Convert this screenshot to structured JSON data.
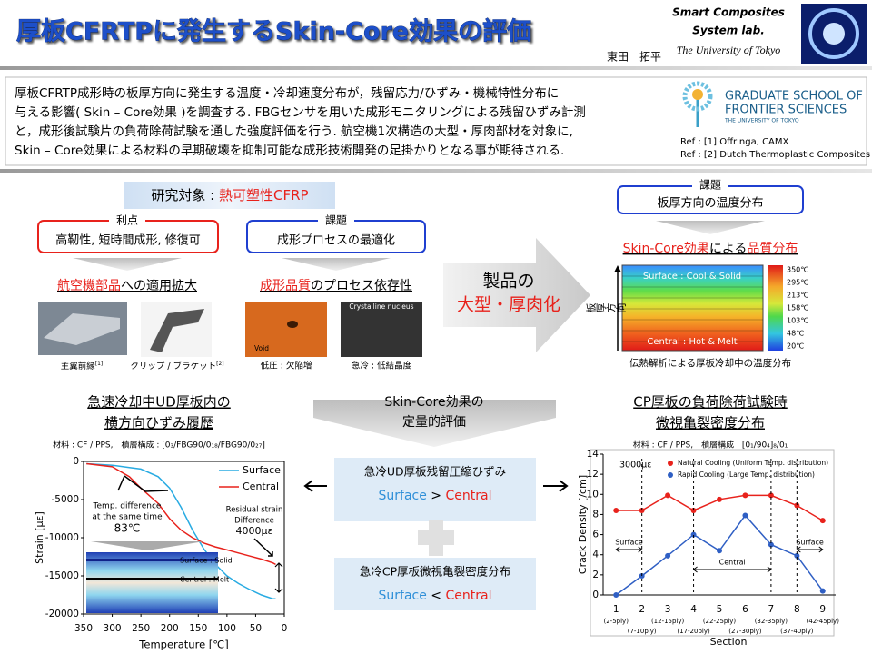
{
  "header": {
    "title": "厚板CFRTPに発生するSkin-Core効果の評価",
    "lab": [
      "Smart Composites",
      "System lab.",
      "The University of Tokyo"
    ],
    "author": "東田　拓平"
  },
  "summary": {
    "lines": [
      "厚板CFRTP成形時の板厚方向に発生する温度・冷却速度分布が，残留応力/ひずみ・機械特性分布に",
      "与える影響( Skin – Core効果 )を調査する. FBGセンサを用いた成形モニタリングによる残留ひずみ計測",
      "と，成形後試験片の負荷除荷試験を通した強度評価を行う. 航空機1次構造の大型・厚肉部材を対象に,",
      "Skin – Core効果による材料の早期破壊を抑制可能な成形技術開発の足掛かりとなる事が期待される."
    ],
    "logo": [
      "GRADUATE SCHOOL OF",
      "FRONTIER SCIENCES",
      "THE UNIVERSITY OF TOKYO"
    ],
    "refs": [
      "Ref : [1] Offringa, CAMX",
      "Ref : [2] Dutch Thermoplastic Composites"
    ]
  },
  "target": {
    "label": "研究対象 : ",
    "value": "熱可塑性CFRP"
  },
  "merit": {
    "heading": "利点",
    "text": "高靭性, 短時間成形, 修復可"
  },
  "issue": {
    "heading": "課題",
    "text": "成形プロセスの最適化"
  },
  "apps": {
    "highlight": "航空機部品",
    "rest": "への適用拡大",
    "captions": [
      {
        "text": "主翼前縁",
        "ref": "[1]"
      },
      {
        "text": "クリップ / ブラケット",
        "ref": "[2]"
      }
    ]
  },
  "quality": {
    "highlight": "成形品質",
    "rest": "のプロセス依存性",
    "labels": [
      "Crystalline nucleus",
      "Void"
    ],
    "captions": [
      "低圧 : 欠陥増",
      "急冷 : 低結晶度"
    ]
  },
  "arrow": {
    "line1": "製品の",
    "line2": "大型・厚肉化"
  },
  "issue2": {
    "heading": "課題",
    "text": "板厚方向の温度分布"
  },
  "heatmap": {
    "title": [
      "Skin-Core効果",
      "による",
      "品質分布"
    ],
    "ylabel": "板厚方向",
    "top": "Surface : Cool & Solid",
    "bottom": "Central : Hot & Melt",
    "colorbar": [
      "350℃",
      "295℃",
      "213℃",
      "158℃",
      "103℃",
      "48℃",
      "20℃"
    ],
    "caption": "伝熱解析による厚板冷却中の温度分布"
  },
  "quant": {
    "line1": "Skin-Core効果の",
    "line2": "定量的評価"
  },
  "box1": {
    "title": "急冷UD厚板残留圧縮ひずみ",
    "left": "Surface",
    "op": " > ",
    "right": "Central"
  },
  "box2": {
    "title": "急冷CP厚板微視亀裂密度分布",
    "left": "Surface",
    "op": " < ",
    "right": "Central"
  },
  "chart_data": [
    {
      "type": "line",
      "title": [
        "急速冷却中UD厚板内の",
        "横方向ひずみ履歴"
      ],
      "subtitle": "材料 : CF / PPS,　積層構成 : [0₃/FBG90/0₁₈/FBG90/0₂₇]",
      "x_label": "Temperature [℃]",
      "y_label": "Strain [με]",
      "x": [
        345,
        300,
        270,
        250,
        220,
        200,
        180,
        160,
        140,
        120,
        100,
        80,
        60,
        40,
        20,
        15
      ],
      "series": [
        {
          "name": "Surface",
          "color": "#29abe2",
          "values": [
            -300,
            -500,
            -800,
            -1000,
            -2000,
            -3500,
            -6000,
            -9000,
            -11500,
            -13500,
            -15000,
            -16000,
            -16800,
            -17500,
            -18000,
            -18000
          ]
        },
        {
          "name": "Central",
          "color": "#e8221c",
          "values": [
            -300,
            -700,
            -2000,
            -3500,
            -5500,
            -7500,
            -9000,
            -10000,
            -10700,
            -11200,
            -11600,
            -12000,
            -12400,
            -12800,
            -13300,
            -13500
          ]
        }
      ],
      "xlim": [
        350,
        0
      ],
      "xticks": [
        350,
        300,
        250,
        200,
        150,
        100,
        50,
        0
      ],
      "ylim": [
        -20000,
        0
      ],
      "yticks": [
        0,
        -5000,
        -10000,
        -15000,
        -20000
      ],
      "legend": "upper right",
      "annotations": [
        "Temp. difference",
        "at the same time",
        "83℃",
        "Residual strain",
        "Difference",
        "4000με",
        "Surface : Solid",
        "Central : Melt"
      ]
    },
    {
      "type": "line",
      "title": [
        "CP厚板の負荷除荷試験時",
        "微視亀裂密度分布"
      ],
      "subtitle": "材料 : CF / PPS,　積層構成 : [0₁/90₄]₈/0₁",
      "x_label": "Section",
      "y_label": "Crack Density [/cm]",
      "categories": [
        "1",
        "2",
        "3",
        "4",
        "5",
        "6",
        "7",
        "8",
        "9"
      ],
      "section_ranges": [
        "(2-5ply)",
        "(7-10ply)",
        "(12-15ply)",
        "(17-20ply)",
        "(22-25ply)",
        "(27-30ply)",
        "(32-35ply)",
        "(37-40ply)",
        "(42-45ply)"
      ],
      "series": [
        {
          "name": "Natural Cooling (Uniform Temp. distribution)",
          "color": "#e8221c",
          "values": [
            8.4,
            8.4,
            9.9,
            8.4,
            9.5,
            9.9,
            9.9,
            8.9,
            7.4
          ]
        },
        {
          "name": "Rapid Cooling (Large Temp. distribution)",
          "color": "#2f5fc4",
          "values": [
            0,
            1.9,
            3.9,
            6.0,
            4.4,
            7.9,
            5.0,
            3.9,
            0.4
          ]
        }
      ],
      "ylim": [
        0,
        14
      ],
      "yticks": [
        0,
        2,
        4,
        6,
        8,
        10,
        12,
        14
      ],
      "legend": "upper center",
      "annotations": [
        "3000με",
        "Surface",
        "Central",
        "Surface"
      ]
    }
  ]
}
